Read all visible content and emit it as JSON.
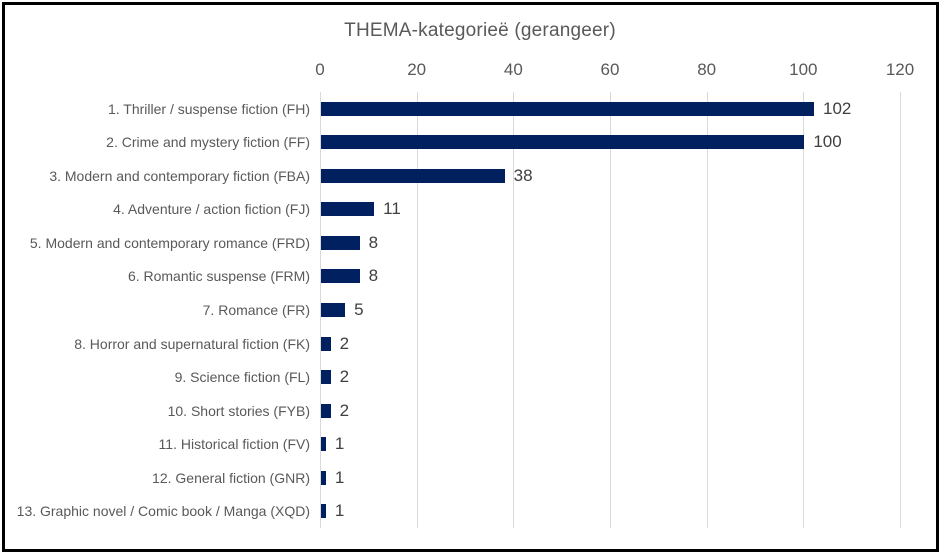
{
  "chart_data": {
    "type": "bar",
    "orientation": "horizontal",
    "title": "THEMA-kategorieë (gerangeer)",
    "categories": [
      "1. Thriller / suspense fiction (FH)",
      "2. Crime and mystery fiction (FF)",
      "3. Modern and contemporary fiction (FBA)",
      "4. Adventure / action fiction (FJ)",
      "5. Modern and contemporary romance (FRD)",
      "6. Romantic suspense (FRM)",
      "7. Romance (FR)",
      "8. Horror and supernatural fiction (FK)",
      "9. Science fiction (FL)",
      "10. Short stories (FYB)",
      "11. Historical fiction (FV)",
      "12. General fiction (GNR)",
      "13. Graphic novel / Comic book / Manga (XQD)"
    ],
    "values": [
      102,
      100,
      38,
      11,
      8,
      8,
      5,
      2,
      2,
      2,
      1,
      1,
      1
    ],
    "data_labels": [
      "102",
      "100",
      "38",
      "11",
      "8",
      "8",
      "5",
      "2",
      "2",
      "2",
      "1",
      "1",
      "1"
    ],
    "xlabel": "",
    "ylabel": "",
    "xlim": [
      0,
      120
    ],
    "x_ticks": [
      0,
      20,
      40,
      60,
      80,
      100,
      120
    ],
    "tick_labels": [
      "0",
      "20",
      "40",
      "60",
      "80",
      "100",
      "120"
    ],
    "grid": "vertical gridlines on",
    "legend": "none",
    "axis_position": "top",
    "colors": {
      "bar": "#002060",
      "gridline": "#d9d9d9",
      "title_text": "#595959",
      "axis_text": "#595959",
      "value_text": "#404040",
      "border": "#000000"
    }
  }
}
